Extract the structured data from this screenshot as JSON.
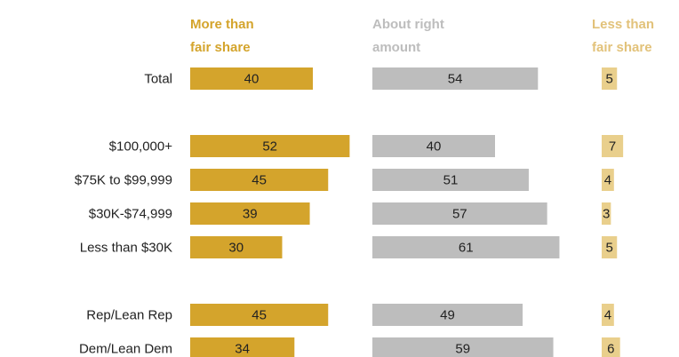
{
  "chart_data": {
    "type": "bar",
    "column_headers": [
      {
        "line1": "More than",
        "line2": "fair share"
      },
      {
        "line1": "About right",
        "line2": "amount"
      },
      {
        "line1": "Less than",
        "line2": "fair share"
      }
    ],
    "rows": [
      {
        "label": "Total",
        "more": 40,
        "about": 54,
        "less": 5
      },
      {
        "label": "$100,000+",
        "more": 52,
        "about": 40,
        "less": 7
      },
      {
        "label": "$75K to $99,999",
        "more": 45,
        "about": 51,
        "less": 4
      },
      {
        "label": "$30K-$74,999",
        "more": 39,
        "about": 57,
        "less": 3
      },
      {
        "label": "Less than $30K",
        "more": 30,
        "about": 61,
        "less": 5
      },
      {
        "label": "Rep/Lean Rep",
        "more": 45,
        "about": 49,
        "less": 4
      },
      {
        "label": "Dem/Lean Dem",
        "more": 34,
        "about": 59,
        "less": 6
      }
    ],
    "row_groups": [
      [
        0
      ],
      [
        1,
        2,
        3,
        4
      ],
      [
        5,
        6
      ]
    ],
    "colors": {
      "more": "#d4a42c",
      "about": "#bdbdbd",
      "less": "#e9cf8c",
      "more_header": "#d4a42c",
      "about_header": "#bdbdbd",
      "less_header": "#e2c27a"
    }
  }
}
